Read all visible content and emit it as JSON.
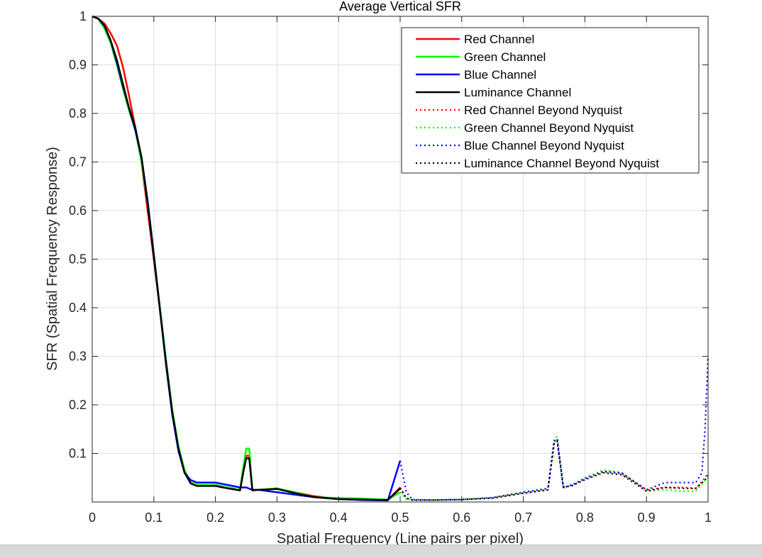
{
  "chart_data": {
    "type": "line",
    "title": "Average Vertical SFR",
    "xlabel": "Spatial Frequency (Line pairs per pixel)",
    "ylabel": "SFR (Spatial Frequency Response)",
    "xlim": [
      0,
      1
    ],
    "ylim": [
      0,
      1
    ],
    "xticks": [
      "0",
      "0.1",
      "0.2",
      "0.3",
      "0.4",
      "0.5",
      "0.6",
      "0.7",
      "0.8",
      "0.9",
      "1"
    ],
    "yticks": [
      "0.1",
      "0.2",
      "0.3",
      "0.4",
      "0.5",
      "0.6",
      "0.7",
      "0.8",
      "0.9",
      "1"
    ],
    "grid": true,
    "legend_position": "top-right",
    "series": [
      {
        "name": "Red Channel",
        "color": "#ff0000",
        "style": "solid",
        "x": [
          0,
          0.01,
          0.02,
          0.03,
          0.04,
          0.05,
          0.06,
          0.07,
          0.08,
          0.09,
          0.1,
          0.11,
          0.12,
          0.13,
          0.14,
          0.15,
          0.16,
          0.17,
          0.18,
          0.2,
          0.22,
          0.24,
          0.245,
          0.25,
          0.255,
          0.26,
          0.27,
          0.3,
          0.33,
          0.36,
          0.4,
          0.44,
          0.48,
          0.5
        ],
        "y": [
          1.0,
          0.995,
          0.985,
          0.965,
          0.94,
          0.895,
          0.835,
          0.77,
          0.7,
          0.6,
          0.5,
          0.395,
          0.285,
          0.185,
          0.11,
          0.06,
          0.04,
          0.035,
          0.034,
          0.035,
          0.03,
          0.025,
          0.06,
          0.095,
          0.095,
          0.025,
          0.025,
          0.027,
          0.02,
          0.012,
          0.006,
          0.004,
          0.004,
          0.03
        ]
      },
      {
        "name": "Green Channel",
        "color": "#00ff00",
        "style": "solid",
        "x": [
          0,
          0.01,
          0.02,
          0.03,
          0.04,
          0.05,
          0.06,
          0.07,
          0.08,
          0.09,
          0.1,
          0.11,
          0.12,
          0.13,
          0.14,
          0.15,
          0.16,
          0.17,
          0.18,
          0.2,
          0.22,
          0.24,
          0.245,
          0.25,
          0.255,
          0.26,
          0.27,
          0.3,
          0.33,
          0.36,
          0.4,
          0.44,
          0.48,
          0.5
        ],
        "y": [
          1.0,
          0.995,
          0.975,
          0.945,
          0.9,
          0.85,
          0.805,
          0.765,
          0.7,
          0.615,
          0.51,
          0.4,
          0.29,
          0.19,
          0.115,
          0.065,
          0.04,
          0.035,
          0.035,
          0.035,
          0.03,
          0.025,
          0.07,
          0.11,
          0.11,
          0.025,
          0.025,
          0.028,
          0.02,
          0.01,
          0.008,
          0.007,
          0.005,
          0.02
        ]
      },
      {
        "name": "Blue Channel",
        "color": "#0000ff",
        "style": "solid",
        "x": [
          0,
          0.01,
          0.02,
          0.03,
          0.04,
          0.05,
          0.06,
          0.07,
          0.08,
          0.09,
          0.1,
          0.11,
          0.12,
          0.13,
          0.14,
          0.15,
          0.16,
          0.17,
          0.18,
          0.2,
          0.22,
          0.24,
          0.25,
          0.26,
          0.27,
          0.3,
          0.33,
          0.36,
          0.4,
          0.44,
          0.48,
          0.5
        ],
        "y": [
          1.0,
          0.995,
          0.98,
          0.95,
          0.905,
          0.855,
          0.81,
          0.765,
          0.71,
          0.62,
          0.51,
          0.395,
          0.28,
          0.18,
          0.105,
          0.06,
          0.045,
          0.04,
          0.04,
          0.04,
          0.035,
          0.03,
          0.03,
          0.025,
          0.025,
          0.02,
          0.015,
          0.01,
          0.006,
          0.004,
          0.003,
          0.085
        ]
      },
      {
        "name": "Luminance Channel",
        "color": "#000000",
        "style": "solid",
        "x": [
          0,
          0.01,
          0.02,
          0.03,
          0.04,
          0.05,
          0.06,
          0.07,
          0.08,
          0.09,
          0.1,
          0.11,
          0.12,
          0.13,
          0.14,
          0.15,
          0.16,
          0.17,
          0.18,
          0.2,
          0.22,
          0.24,
          0.245,
          0.25,
          0.255,
          0.26,
          0.27,
          0.3,
          0.33,
          0.36,
          0.4,
          0.44,
          0.48,
          0.5
        ],
        "y": [
          1.0,
          0.995,
          0.98,
          0.95,
          0.91,
          0.86,
          0.81,
          0.77,
          0.71,
          0.615,
          0.505,
          0.395,
          0.285,
          0.185,
          0.11,
          0.06,
          0.038,
          0.033,
          0.033,
          0.033,
          0.028,
          0.024,
          0.06,
          0.09,
          0.09,
          0.024,
          0.025,
          0.027,
          0.018,
          0.01,
          0.006,
          0.005,
          0.004,
          0.028
        ]
      },
      {
        "name": "Red Channel Beyond Nyquist",
        "color": "#ff0000",
        "style": "dotted",
        "x": [
          0.5,
          0.51,
          0.52,
          0.55,
          0.6,
          0.65,
          0.7,
          0.74,
          0.75,
          0.755,
          0.765,
          0.78,
          0.8,
          0.83,
          0.86,
          0.9,
          0.93,
          0.96,
          0.98,
          0.995,
          1.0
        ],
        "y": [
          0.03,
          0.008,
          0.004,
          0.004,
          0.005,
          0.008,
          0.018,
          0.025,
          0.125,
          0.13,
          0.03,
          0.035,
          0.048,
          0.062,
          0.058,
          0.025,
          0.03,
          0.03,
          0.028,
          0.05,
          0.06
        ]
      },
      {
        "name": "Green Channel Beyond Nyquist",
        "color": "#00ff00",
        "style": "dotted",
        "x": [
          0.5,
          0.51,
          0.52,
          0.55,
          0.6,
          0.65,
          0.7,
          0.74,
          0.75,
          0.755,
          0.765,
          0.78,
          0.8,
          0.83,
          0.86,
          0.9,
          0.93,
          0.96,
          0.98,
          0.995,
          1.0
        ],
        "y": [
          0.02,
          0.006,
          0.004,
          0.004,
          0.005,
          0.009,
          0.02,
          0.027,
          0.13,
          0.135,
          0.03,
          0.036,
          0.05,
          0.066,
          0.06,
          0.023,
          0.025,
          0.022,
          0.022,
          0.045,
          0.05
        ]
      },
      {
        "name": "Blue Channel Beyond Nyquist",
        "color": "#0000ff",
        "style": "dotted",
        "x": [
          0.5,
          0.51,
          0.52,
          0.55,
          0.6,
          0.65,
          0.7,
          0.74,
          0.75,
          0.755,
          0.765,
          0.78,
          0.8,
          0.83,
          0.86,
          0.9,
          0.93,
          0.96,
          0.98,
          0.99,
          0.995,
          1.0
        ],
        "y": [
          0.085,
          0.02,
          0.005,
          0.004,
          0.005,
          0.009,
          0.02,
          0.028,
          0.125,
          0.13,
          0.03,
          0.035,
          0.048,
          0.063,
          0.06,
          0.025,
          0.04,
          0.04,
          0.04,
          0.06,
          0.15,
          0.3
        ]
      },
      {
        "name": "Luminance Channel Beyond Nyquist",
        "color": "#000000",
        "style": "dotted",
        "x": [
          0.5,
          0.51,
          0.52,
          0.55,
          0.6,
          0.65,
          0.7,
          0.74,
          0.75,
          0.755,
          0.765,
          0.78,
          0.8,
          0.83,
          0.86,
          0.9,
          0.93,
          0.96,
          0.98,
          0.995,
          1.0
        ],
        "y": [
          0.028,
          0.008,
          0.004,
          0.004,
          0.005,
          0.008,
          0.018,
          0.025,
          0.12,
          0.125,
          0.03,
          0.034,
          0.046,
          0.06,
          0.056,
          0.022,
          0.03,
          0.028,
          0.028,
          0.045,
          0.055
        ]
      }
    ]
  }
}
